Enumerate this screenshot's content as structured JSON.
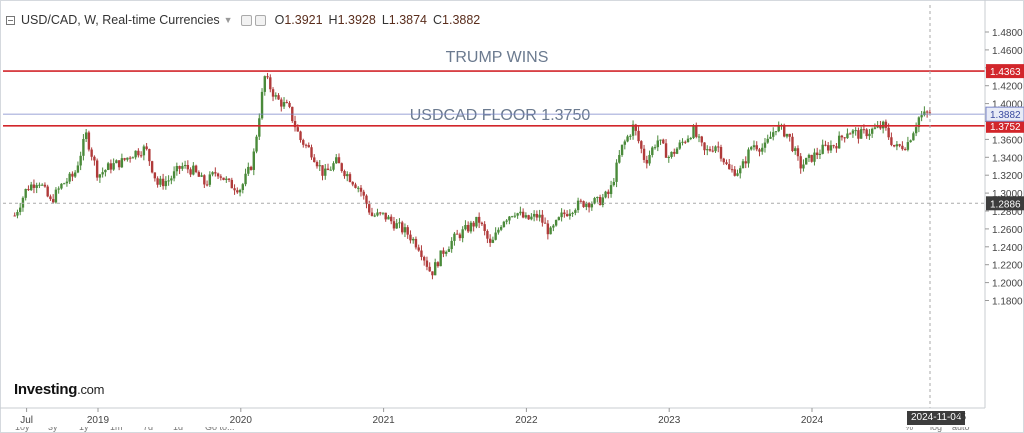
{
  "header": {
    "title": "USD/CAD, W, Real-time Currencies",
    "open_label": "O",
    "open": "1.3921",
    "high_label": "H",
    "high": "1.3928",
    "low_label": "L",
    "low": "1.3874",
    "close_label": "C",
    "close": "1.3882"
  },
  "logo": {
    "main": "Investing",
    "suffix": ".com"
  },
  "crosshair_date": "2024-11-04",
  "crosshair_date_suffix": "25",
  "toolbar": {
    "items": [
      "10y",
      "3y",
      "1y",
      "1m",
      "7d",
      "1d",
      "Go to..."
    ],
    "right_items": [
      "%",
      "log",
      "auto"
    ]
  },
  "colors": {
    "up": "#4a8a3a",
    "down": "#b03a3a",
    "hline": "#d2262b",
    "current": "#7a86c8",
    "annotation": "#6b7a8f",
    "axis_text": "#444444"
  },
  "chart_data": {
    "type": "candlestick",
    "symbol": "USD/CAD",
    "interval": "W",
    "ylim": [
      1.17,
      1.49
    ],
    "y_ticks": [
      "1.4800",
      "1.4600",
      "1.4400",
      "1.4200",
      "1.4000",
      "1.3800",
      "1.3600",
      "1.3400",
      "1.3200",
      "1.3000",
      "1.2800",
      "1.2600",
      "1.2400",
      "1.2200",
      "1.2000",
      "1.1800"
    ],
    "x_labels": [
      "Jul",
      "2019",
      "2020",
      "2021",
      "2022",
      "2023",
      "2024"
    ],
    "x_label_dates": [
      "2018-07",
      "2019-01",
      "2020-01",
      "2021-01",
      "2022-01",
      "2023-01",
      "2024-01"
    ],
    "date_range": [
      "2018-06",
      "2024-12"
    ],
    "horizontal_lines": [
      {
        "value": 1.4363,
        "label": "1.4363",
        "annotation": "TRUMP WINS"
      },
      {
        "value": 1.3752,
        "label": "1.3752",
        "annotation": "USDCAD FLOOR 1.3750"
      }
    ],
    "current_price": {
      "value": 1.3882,
      "label": "1.3882"
    },
    "crosshair_price": {
      "value": 1.2886,
      "label": "1.2886"
    },
    "price_path": [
      [
        "2018-06",
        1.275
      ],
      [
        "2018-07",
        1.305
      ],
      [
        "2018-08",
        1.315
      ],
      [
        "2018-09",
        1.29
      ],
      [
        "2018-10",
        1.31
      ],
      [
        "2018-11",
        1.32
      ],
      [
        "2018-12",
        1.365
      ],
      [
        "2019-01",
        1.32
      ],
      [
        "2019-02",
        1.33
      ],
      [
        "2019-03",
        1.335
      ],
      [
        "2019-04",
        1.345
      ],
      [
        "2019-05",
        1.35
      ],
      [
        "2019-06",
        1.31
      ],
      [
        "2019-07",
        1.315
      ],
      [
        "2019-08",
        1.33
      ],
      [
        "2019-09",
        1.325
      ],
      [
        "2019-10",
        1.31
      ],
      [
        "2019-11",
        1.325
      ],
      [
        "2019-12",
        1.31
      ],
      [
        "2020-01",
        1.305
      ],
      [
        "2020-02",
        1.335
      ],
      [
        "2020-03",
        1.43
      ],
      [
        "2020-04",
        1.405
      ],
      [
        "2020-05",
        1.395
      ],
      [
        "2020-06",
        1.36
      ],
      [
        "2020-07",
        1.345
      ],
      [
        "2020-08",
        1.32
      ],
      [
        "2020-09",
        1.335
      ],
      [
        "2020-10",
        1.32
      ],
      [
        "2020-11",
        1.305
      ],
      [
        "2020-12",
        1.275
      ],
      [
        "2021-01",
        1.275
      ],
      [
        "2021-02",
        1.265
      ],
      [
        "2021-03",
        1.255
      ],
      [
        "2021-04",
        1.24
      ],
      [
        "2021-05",
        1.21
      ],
      [
        "2021-06",
        1.235
      ],
      [
        "2021-07",
        1.25
      ],
      [
        "2021-08",
        1.26
      ],
      [
        "2021-09",
        1.27
      ],
      [
        "2021-10",
        1.24
      ],
      [
        "2021-11",
        1.27
      ],
      [
        "2021-12",
        1.28
      ],
      [
        "2022-01",
        1.27
      ],
      [
        "2022-02",
        1.275
      ],
      [
        "2022-03",
        1.255
      ],
      [
        "2022-04",
        1.275
      ],
      [
        "2022-05",
        1.285
      ],
      [
        "2022-06",
        1.29
      ],
      [
        "2022-07",
        1.29
      ],
      [
        "2022-08",
        1.3
      ],
      [
        "2022-09",
        1.35
      ],
      [
        "2022-10",
        1.375
      ],
      [
        "2022-11",
        1.335
      ],
      [
        "2022-12",
        1.36
      ],
      [
        "2023-01",
        1.34
      ],
      [
        "2023-02",
        1.355
      ],
      [
        "2023-03",
        1.37
      ],
      [
        "2023-04",
        1.345
      ],
      [
        "2023-05",
        1.355
      ],
      [
        "2023-06",
        1.325
      ],
      [
        "2023-07",
        1.325
      ],
      [
        "2023-08",
        1.355
      ],
      [
        "2023-09",
        1.35
      ],
      [
        "2023-10",
        1.375
      ],
      [
        "2023-11",
        1.365
      ],
      [
        "2023-12",
        1.33
      ],
      [
        "2024-01",
        1.34
      ],
      [
        "2024-02",
        1.35
      ],
      [
        "2024-03",
        1.355
      ],
      [
        "2024-04",
        1.37
      ],
      [
        "2024-05",
        1.365
      ],
      [
        "2024-06",
        1.37
      ],
      [
        "2024-07",
        1.375
      ],
      [
        "2024-08",
        1.35
      ],
      [
        "2024-09",
        1.355
      ],
      [
        "2024-10",
        1.385
      ],
      [
        "2024-11",
        1.39
      ]
    ]
  }
}
